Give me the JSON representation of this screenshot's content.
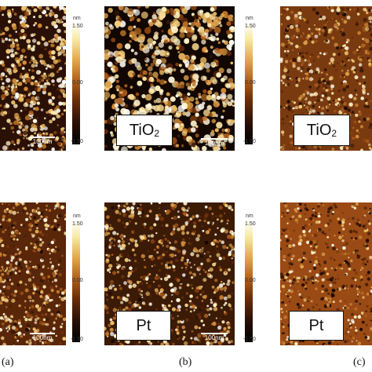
{
  "colorbar": {
    "unit": "nm",
    "max": "1.50",
    "mid": "0.00",
    "min": "-1.50"
  },
  "scalebar": {
    "label": "100nm"
  },
  "panels": {
    "a": {
      "label": "(a)"
    },
    "b": {
      "label": "(b)",
      "top_material_main": "TiO",
      "top_material_sub": "2",
      "bottom_material": "Pt"
    },
    "c": {
      "label": "(c)",
      "top_material_main": "TiO",
      "top_material_sub": "2",
      "bottom_material": "Pt"
    }
  },
  "colors": {
    "dark": "#2a1005",
    "mid": "#a85818",
    "bright": "#f7eaa6",
    "white": "#ffffff"
  }
}
